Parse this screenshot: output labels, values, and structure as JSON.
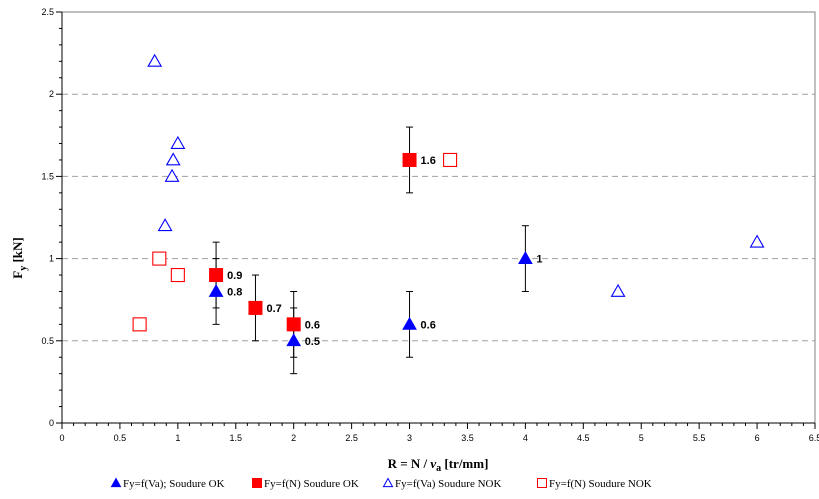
{
  "chart_data": {
    "type": "scatter",
    "title": "",
    "xlabel": "R = N / v a [tr/mm]",
    "xlabel_parts": {
      "main": "R = N / ",
      "italic": "v",
      "sub": "a",
      "tail": " [tr/mm]"
    },
    "ylabel": "Fy [kN]",
    "ylabel_parts": {
      "main": "F",
      "sub": "y",
      "tail": " [kN]"
    },
    "xlim": [
      0,
      6.5
    ],
    "ylim": [
      0,
      2.5
    ],
    "x_ticks": [
      "0",
      "0.5",
      "1",
      "1.5",
      "2",
      "2.5",
      "3",
      "3.5",
      "4",
      "4.5",
      "5",
      "5.5",
      "6",
      "6.5"
    ],
    "y_ticks": [
      "0",
      "0.5",
      "1",
      "1.5",
      "2",
      "2.5"
    ],
    "grid": "horizontal dashed",
    "legend_position": "bottom",
    "series": [
      {
        "name": "Fy=f(Va); Soudure OK",
        "marker": "triangle-filled",
        "color": "#0000ff",
        "points": [
          {
            "x": 1.33,
            "y": 0.8,
            "label": "0.8",
            "err": 0.2
          },
          {
            "x": 2.0,
            "y": 0.5,
            "label": "0.5",
            "err": 0.2
          },
          {
            "x": 3.0,
            "y": 0.6,
            "label": "0.6",
            "err": 0.2
          },
          {
            "x": 4.0,
            "y": 1.0,
            "label": "1",
            "err": 0.2
          }
        ]
      },
      {
        "name": "Fy=f(N)  Soudure OK",
        "marker": "square-filled",
        "color": "#ff0000",
        "points": [
          {
            "x": 1.33,
            "y": 0.9,
            "label": "0.9",
            "err": 0.2
          },
          {
            "x": 1.67,
            "y": 0.7,
            "label": "0.7",
            "err": 0.2
          },
          {
            "x": 2.0,
            "y": 0.6,
            "label": "0.6",
            "err": 0.2
          },
          {
            "x": 3.0,
            "y": 1.6,
            "label": "1.6",
            "err": 0.2
          }
        ]
      },
      {
        "name": "Fy=f(Va) Soudure NOK",
        "marker": "triangle-open",
        "color": "#0000ff",
        "points": [
          {
            "x": 0.8,
            "y": 2.2
          },
          {
            "x": 1.0,
            "y": 1.7
          },
          {
            "x": 0.96,
            "y": 1.6
          },
          {
            "x": 0.95,
            "y": 1.5
          },
          {
            "x": 0.89,
            "y": 1.2
          },
          {
            "x": 4.8,
            "y": 0.8
          },
          {
            "x": 6.0,
            "y": 1.1
          }
        ]
      },
      {
        "name": "Fy=f(N) Soudure NOK",
        "marker": "square-open",
        "color": "#ff0000",
        "points": [
          {
            "x": 0.84,
            "y": 1.0
          },
          {
            "x": 1.0,
            "y": 0.9
          },
          {
            "x": 0.67,
            "y": 0.6
          },
          {
            "x": 3.35,
            "y": 1.6
          }
        ]
      }
    ]
  }
}
